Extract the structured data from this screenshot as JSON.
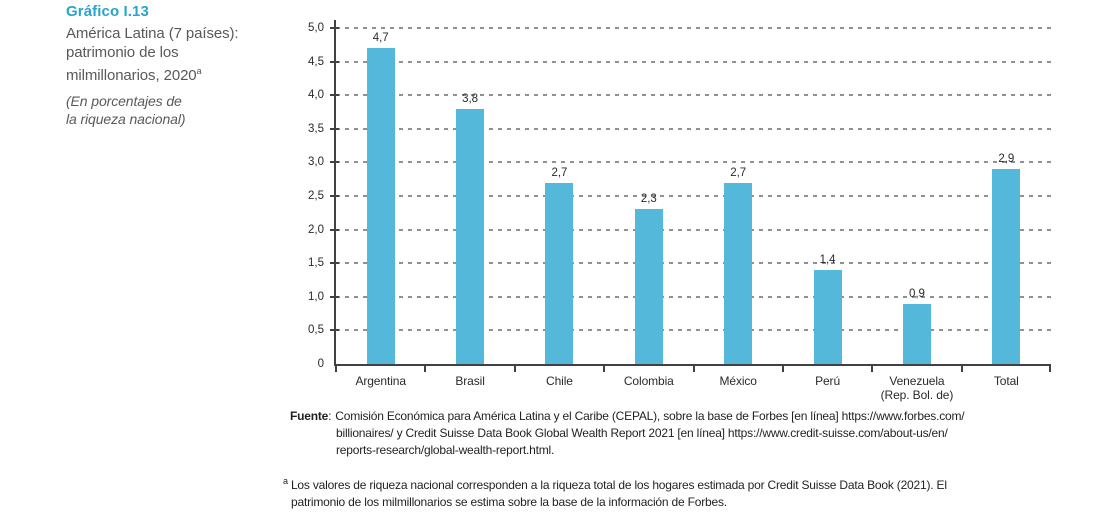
{
  "header": {
    "figure_number": "Gráfico I.13",
    "title_lines": "América Latina (7 países):\npatrimonio de los\nmilmillonarios, 2020",
    "title_footnote_marker": "a",
    "subtitle_lines": "(En porcentajes de\nla riqueza nacional)"
  },
  "chart_data": {
    "type": "bar",
    "title": "América Latina (7 países): patrimonio de los milmillonarios, 2020",
    "unit_note": "En porcentajes de la riqueza nacional",
    "categories": [
      "Argentina",
      "Brasil",
      "Chile",
      "Colombia",
      "México",
      "Perú",
      "Venezuela\n(Rep. Bol. de)",
      "Total"
    ],
    "values": [
      4.7,
      3.8,
      2.7,
      2.3,
      2.7,
      1.4,
      0.9,
      2.9
    ],
    "value_labels": [
      "4,7",
      "3,8",
      "2,7",
      "2,3",
      "2,7",
      "1,4",
      "0,9",
      "2,9"
    ],
    "ylim": [
      0,
      5
    ],
    "ytick_step": 0.5,
    "ytick_labels": [
      "0",
      "0,5",
      "1,0",
      "1,5",
      "2,0",
      "2,5",
      "3,0",
      "3,5",
      "4,0",
      "4,5",
      "5,0"
    ],
    "grid": "horizontal-dashed",
    "legend": "none",
    "bar_color": "#54B8DB"
  },
  "source": {
    "label": "Fuente",
    "separator": ":",
    "text": "Comisión Económica para América Latina y el Caribe (CEPAL), sobre la base de Forbes [en línea] https://www.forbes.com/\nbillionaires/ y Credit Suisse Data Book Global Wealth Report 2021 [en línea] https://www.credit-suisse.com/about-us/en/\nreports-research/global-wealth-report.html."
  },
  "footnote": {
    "marker": "a",
    "text": "Los valores de riqueza nacional corresponden a la riqueza total de los hogares estimada por Credit Suisse Data Book (2021). El\npatrimonio de los milmillonarios se estima sobre la base de la información de Forbes."
  },
  "colors": {
    "accent": "#28A4CE",
    "bar": "#54B8DB",
    "axis": "#414042",
    "grid": "#8F9194",
    "title_text": "#58595B"
  }
}
